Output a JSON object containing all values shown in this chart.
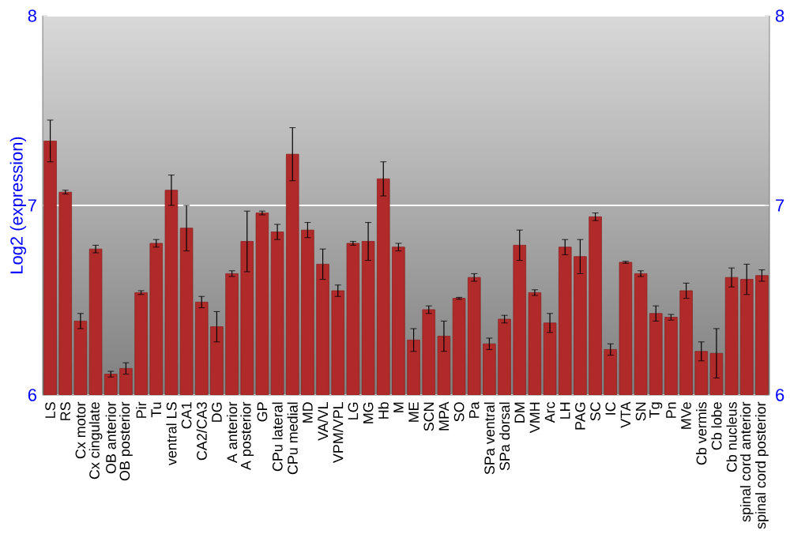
{
  "chart_data": {
    "type": "bar",
    "ylabel": "Log2 (expression)",
    "categories": [
      "LS",
      "RS",
      "Cx motor",
      "Cx cingulate",
      "OB anterior",
      "OB posterior",
      "Pir",
      "Tu",
      "ventral LS",
      "CA1",
      "CA2/CA3",
      "DG",
      "A anterior",
      "A posterior",
      "GP",
      "CPu lateral",
      "CPu medial",
      "MD",
      "VA/VL",
      "VPM/VPL",
      "LG",
      "MG",
      "Hb",
      "M",
      "ME",
      "SCN",
      "MPA",
      "SO",
      "Pa",
      "SPa ventral",
      "SPa dorsal",
      "DM",
      "VMH",
      "Arc",
      "LH",
      "PAG",
      "SC",
      "IC",
      "VTA",
      "SN",
      "Tg",
      "Pn",
      "MVe",
      "Cb vermis",
      "Cb lobe",
      "Cb nucleus",
      "spinal cord anterior",
      "spinal cord posterior"
    ],
    "values": [
      7.34,
      7.07,
      6.39,
      6.77,
      6.11,
      6.14,
      6.54,
      6.8,
      7.08,
      6.88,
      6.49,
      6.36,
      6.64,
      6.81,
      6.96,
      6.86,
      7.27,
      6.87,
      6.69,
      6.55,
      6.8,
      6.81,
      7.14,
      6.78,
      6.29,
      6.45,
      6.31,
      6.51,
      6.62,
      6.27,
      6.4,
      6.79,
      6.54,
      6.38,
      6.78,
      6.73,
      6.94,
      6.24,
      6.7,
      6.64,
      6.43,
      6.41,
      6.55,
      6.23,
      6.22,
      6.62,
      6.61,
      6.63
    ],
    "errors": [
      0.11,
      0.01,
      0.04,
      0.02,
      0.015,
      0.03,
      0.01,
      0.02,
      0.08,
      0.12,
      0.03,
      0.08,
      0.015,
      0.16,
      0.01,
      0.04,
      0.14,
      0.04,
      0.08,
      0.03,
      0.01,
      0.1,
      0.09,
      0.02,
      0.06,
      0.02,
      0.08,
      0.005,
      0.02,
      0.03,
      0.02,
      0.08,
      0.015,
      0.05,
      0.04,
      0.09,
      0.02,
      0.03,
      0.005,
      0.015,
      0.04,
      0.015,
      0.04,
      0.05,
      0.13,
      0.05,
      0.08,
      0.03
    ],
    "color": "#b02a2a",
    "ylim": [
      6,
      8
    ],
    "yticks": [
      6,
      7,
      8
    ],
    "y2lim": [
      6,
      8
    ],
    "y2ticks": [
      6,
      7,
      8
    ],
    "grid": "y"
  }
}
